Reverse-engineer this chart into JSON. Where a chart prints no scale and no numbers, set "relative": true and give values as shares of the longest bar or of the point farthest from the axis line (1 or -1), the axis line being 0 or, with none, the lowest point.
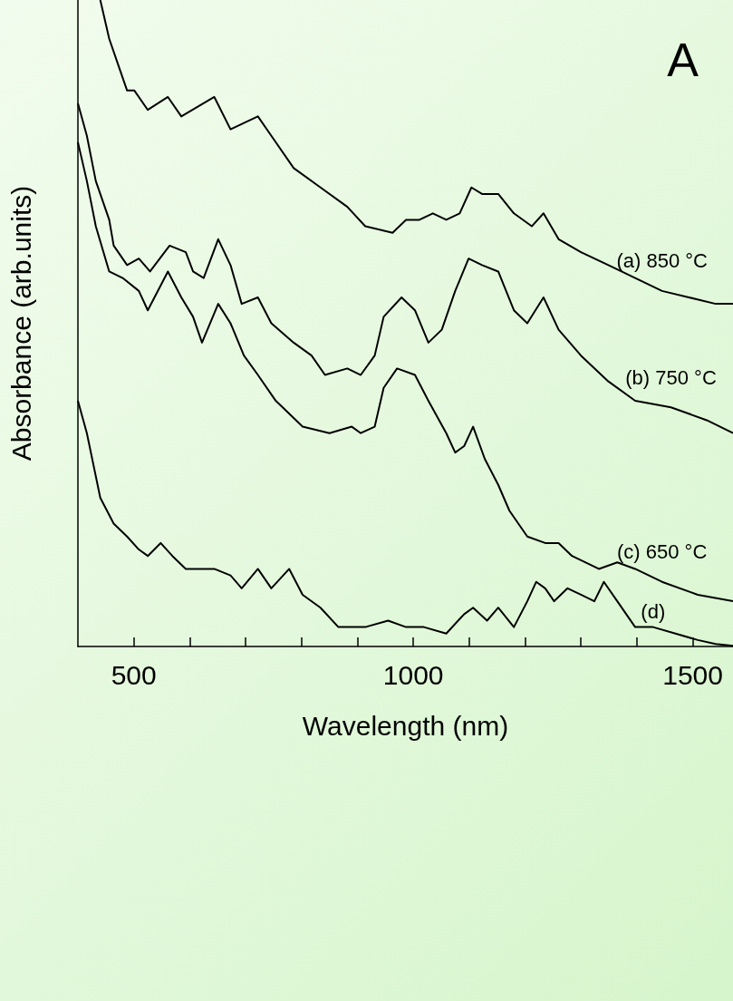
{
  "chart_data": {
    "type": "line",
    "relative": true,
    "xlabel": "Wavelength (nm)",
    "ylabel": "Absorbance (arb.units)",
    "annotations": [
      "A"
    ],
    "xlim": [
      400,
      1572
    ],
    "xticks": [
      500,
      {
        "value": 600,
        "label": null
      },
      {
        "value": 700,
        "label": null
      },
      {
        "value": 800,
        "label": null
      },
      {
        "value": 900,
        "label": null
      },
      1000,
      {
        "value": 1100,
        "label": null
      },
      {
        "value": 1200,
        "label": null
      },
      {
        "value": 1300,
        "label": null
      },
      {
        "value": 1400,
        "label": null
      },
      1500
    ],
    "tick_labels": "x",
    "grid": false,
    "legend": false,
    "marker": "none",
    "line_style": "solid",
    "series": [
      {
        "name": "(a) 850 °C",
        "color": "#000000",
        "x": [
          440,
          456,
          472,
          488,
          501,
          525,
          561,
          585,
          644,
          673,
          722,
          746,
          786,
          834,
          882,
          914,
          963,
          987,
          1011,
          1035,
          1059,
          1083,
          1104,
          1123,
          1152,
          1180,
          1212,
          1233,
          1260,
          1300,
          1349,
          1397,
          1445,
          1493,
          1541,
          1572
        ],
        "values": [
          1,
          0.94,
          0.9,
          0.86,
          0.86,
          0.83,
          0.85,
          0.82,
          0.85,
          0.8,
          0.82,
          0.79,
          0.74,
          0.71,
          0.68,
          0.65,
          0.64,
          0.66,
          0.66,
          0.67,
          0.66,
          0.67,
          0.71,
          0.7,
          0.7,
          0.67,
          0.65,
          0.67,
          0.63,
          0.61,
          0.59,
          0.57,
          0.55,
          0.54,
          0.53,
          0.53
        ]
      },
      {
        "name": "(b) 750 °C",
        "color": "#000000",
        "x": [
          400,
          416,
          432,
          456,
          464,
          488,
          509,
          529,
          564,
          593,
          606,
          625,
          651,
          673,
          693,
          722,
          746,
          786,
          818,
          842,
          882,
          906,
          931,
          947,
          979,
          1003,
          1027,
          1051,
          1075,
          1099,
          1123,
          1152,
          1180,
          1204,
          1233,
          1260,
          1300,
          1349,
          1397,
          1461,
          1525,
          1572
        ],
        "values": [
          0.84,
          0.79,
          0.72,
          0.66,
          0.62,
          0.59,
          0.6,
          0.58,
          0.62,
          0.61,
          0.58,
          0.57,
          0.63,
          0.59,
          0.53,
          0.54,
          0.5,
          0.47,
          0.45,
          0.42,
          0.43,
          0.42,
          0.45,
          0.51,
          0.54,
          0.52,
          0.47,
          0.49,
          0.55,
          0.6,
          0.59,
          0.58,
          0.52,
          0.5,
          0.54,
          0.49,
          0.45,
          0.41,
          0.38,
          0.37,
          0.35,
          0.33
        ]
      },
      {
        "name": "(c) 650 °C",
        "color": "#000000",
        "x": [
          400,
          416,
          432,
          456,
          480,
          509,
          525,
          561,
          585,
          606,
          622,
          651,
          673,
          697,
          722,
          754,
          802,
          850,
          890,
          906,
          931,
          947,
          971,
          1003,
          1027,
          1059,
          1075,
          1091,
          1107,
          1128,
          1152,
          1172,
          1204,
          1236,
          1260,
          1284,
          1332,
          1365,
          1397,
          1445,
          1509,
          1572
        ],
        "values": [
          0.78,
          0.72,
          0.65,
          0.58,
          0.57,
          0.55,
          0.52,
          0.58,
          0.54,
          0.51,
          0.47,
          0.53,
          0.5,
          0.45,
          0.42,
          0.38,
          0.34,
          0.33,
          0.34,
          0.33,
          0.34,
          0.4,
          0.43,
          0.42,
          0.38,
          0.33,
          0.3,
          0.31,
          0.34,
          0.29,
          0.25,
          0.21,
          0.17,
          0.16,
          0.16,
          0.14,
          0.12,
          0.13,
          0.12,
          0.1,
          0.08,
          0.07
        ]
      },
      {
        "name": "(d)",
        "color": "#000000",
        "x": [
          400,
          416,
          440,
          464,
          488,
          509,
          525,
          548,
          569,
          593,
          617,
          644,
          673,
          693,
          722,
          746,
          778,
          802,
          834,
          866,
          914,
          955,
          987,
          1019,
          1059,
          1091,
          1107,
          1132,
          1152,
          1180,
          1204,
          1220,
          1236,
          1252,
          1276,
          1300,
          1324,
          1341,
          1365,
          1397,
          1429,
          1469,
          1509,
          1541,
          1572
        ],
        "values": [
          0.38,
          0.33,
          0.23,
          0.19,
          0.17,
          0.15,
          0.14,
          0.16,
          0.14,
          0.12,
          0.12,
          0.12,
          0.11,
          0.09,
          0.12,
          0.09,
          0.12,
          0.08,
          0.06,
          0.03,
          0.03,
          0.04,
          0.03,
          0.03,
          0.02,
          0.05,
          0.06,
          0.04,
          0.06,
          0.03,
          0.07,
          0.1,
          0.09,
          0.07,
          0.09,
          0.08,
          0.07,
          0.1,
          0.07,
          0.03,
          0.03,
          0.02,
          0.01,
          0.004,
          0.001
        ]
      }
    ]
  }
}
